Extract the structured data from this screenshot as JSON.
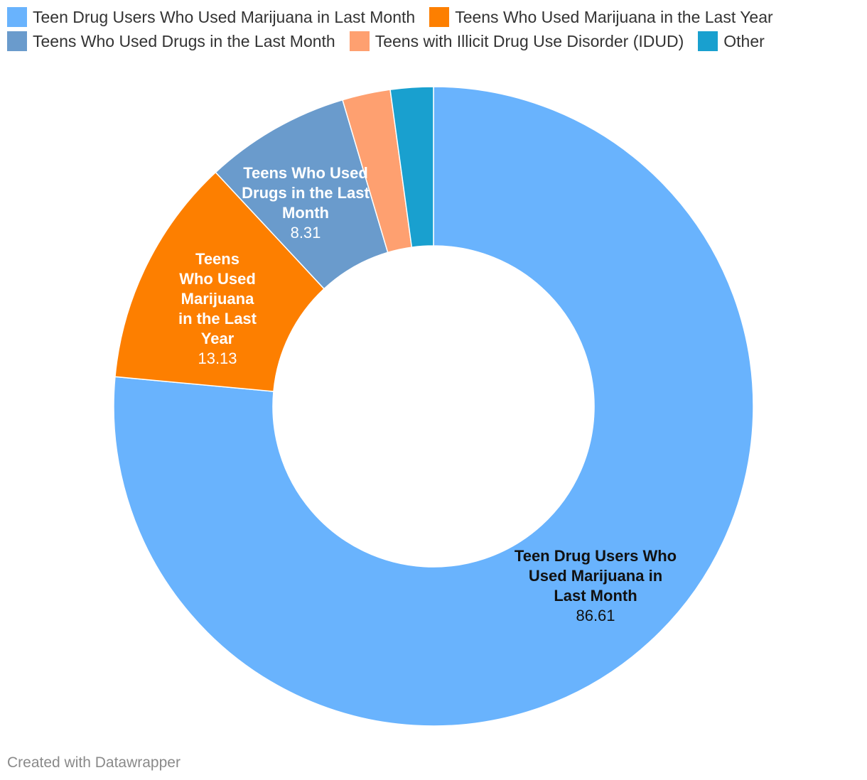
{
  "chart_data": {
    "type": "pie",
    "variant": "donut",
    "title": "",
    "legend_position": "top",
    "slices": [
      {
        "label": "Teen Drug Users Who Used Marijuana in Last Month",
        "value": 86.61,
        "color": "#69b3fd",
        "label_color": "#111111",
        "label_lines": [
          "Teen Drug Users Who",
          "Used Marijuana in",
          "Last Month"
        ],
        "value_label": "86.61"
      },
      {
        "label": "Teens Who Used Marijuana in the Last Year",
        "value": 13.13,
        "color": "#fd7f00",
        "label_color": "#ffffff",
        "label_lines": [
          "Teens",
          "Who Used",
          "Marijuana",
          "in the Last",
          "Year"
        ],
        "value_label": "13.13"
      },
      {
        "label": "Teens Who Used Drugs in the Last Month",
        "value": 8.31,
        "color": "#6a9bcc",
        "label_color": "#ffffff",
        "label_lines": [
          "Teens Who Used",
          "Drugs in the Last",
          "Month"
        ],
        "value_label": "8.31"
      },
      {
        "label": "Teens with Illicit Drug Use Disorder (IDUD)",
        "value": 2.75,
        "color": "#fea070",
        "label_color": "#ffffff",
        "label_lines": [],
        "value_label": ""
      },
      {
        "label": "Other",
        "value": 2.45,
        "color": "#19a0cf",
        "label_color": "#ffffff",
        "label_lines": [],
        "value_label": ""
      }
    ]
  },
  "footer": {
    "credit": "Created with Datawrapper"
  }
}
